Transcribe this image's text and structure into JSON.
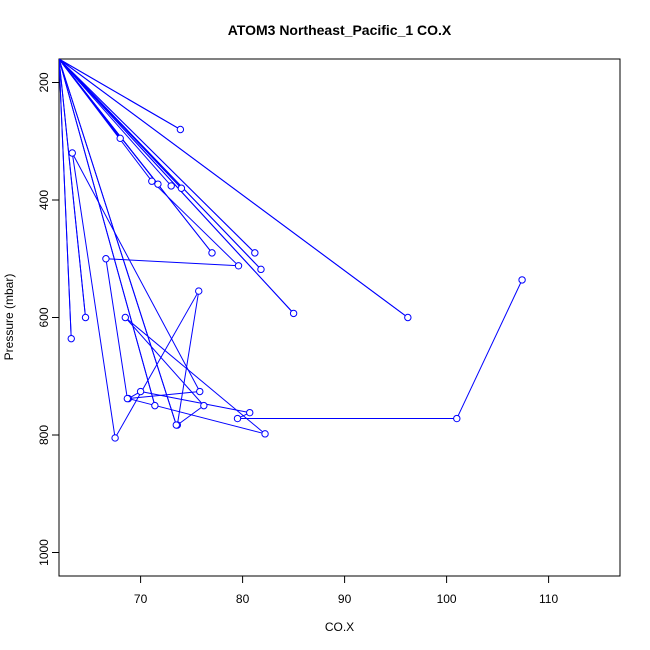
{
  "chart_data": {
    "type": "line",
    "title": "ATOM3 Northeast_Pacific_1 CO.X",
    "xlabel": "CO.X",
    "ylabel": "Pressure (mbar)",
    "xlim": [
      62,
      117
    ],
    "ylim": [
      1040,
      160
    ],
    "y_reversed": true,
    "grid": false,
    "legend": "none",
    "x_ticks": [
      70,
      80,
      90,
      100,
      110
    ],
    "y_ticks": [
      200,
      400,
      600,
      800,
      1000
    ],
    "series": [
      {
        "color": "#0000ff",
        "marker": "open-circle",
        "x": [
          107.4,
          101.0,
          79.5,
          80.7,
          70.0,
          68.8,
          82.2,
          68.5,
          76.2,
          73.6,
          75.7,
          67.5,
          63.3,
          75.8,
          68.7,
          66.6,
          79.6,
          71.1,
          62.0,
          64.6,
          62.0,
          63.2,
          62.0,
          73.9,
          62.0,
          73.5,
          62.0,
          71.4,
          62.0,
          71.7,
          62.0,
          96.2,
          62.0,
          68.0,
          62.0,
          85.0,
          62.0,
          81.8,
          62.0,
          81.2,
          62.0,
          77.0,
          62.0,
          74.0,
          62.0,
          73.0
        ],
        "y": [
          536,
          772,
          772,
          762,
          726,
          738,
          798,
          600,
          750,
          783,
          555,
          805,
          320,
          726,
          738,
          500,
          512,
          368,
          160,
          600,
          160,
          636,
          160,
          280,
          160,
          783,
          160,
          750,
          160,
          373,
          160,
          600,
          160,
          295,
          160,
          593,
          160,
          518,
          160,
          490,
          160,
          490,
          160,
          380,
          160,
          376
        ]
      }
    ]
  }
}
